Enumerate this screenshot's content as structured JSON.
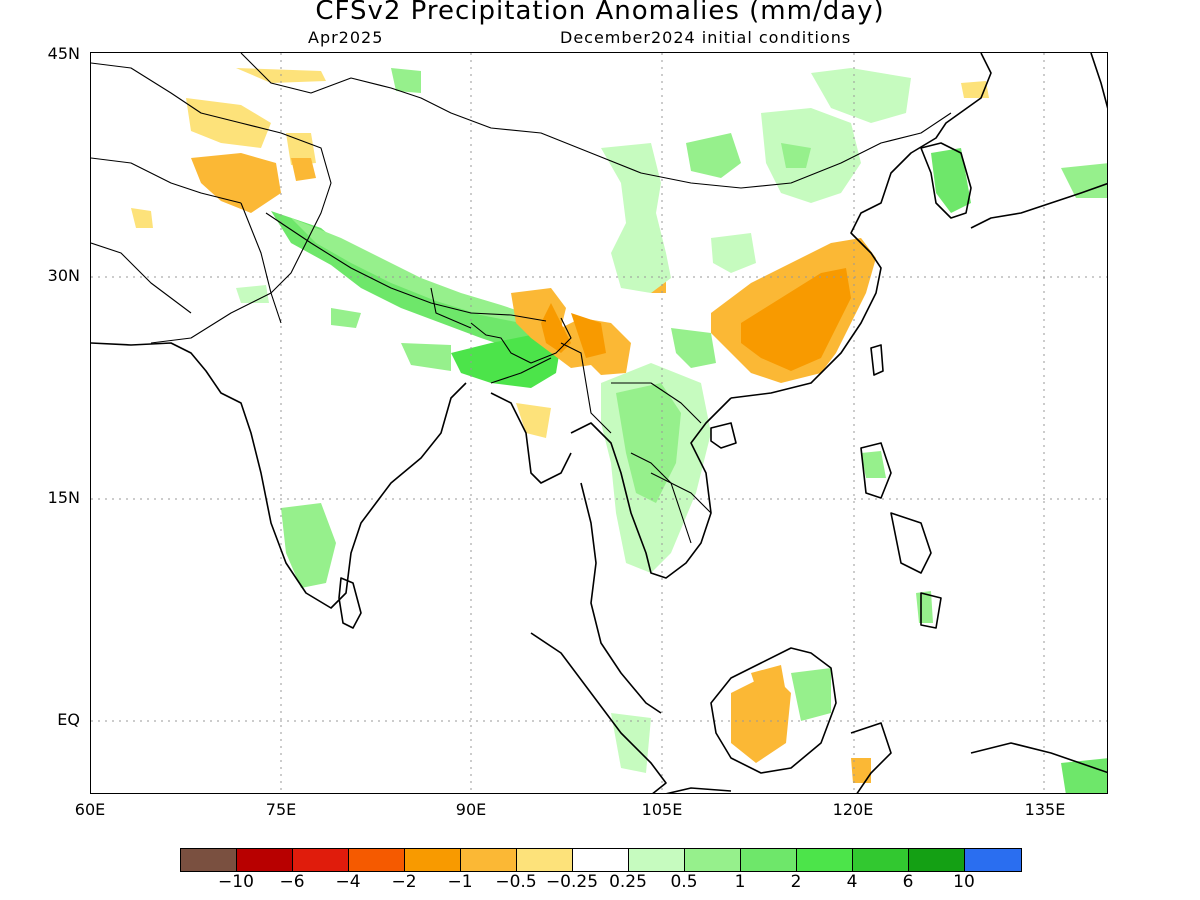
{
  "title": "CFSv2 Precipitation Anomalies (mm/day)",
  "subtitle_left": "Apr2025",
  "subtitle_right": "December2024 initial conditions",
  "lat_labels": [
    "45N",
    "30N",
    "15N",
    "EQ"
  ],
  "lon_labels": [
    "60E",
    "75E",
    "90E",
    "105E",
    "120E",
    "135E"
  ],
  "colorbar": {
    "colors": [
      "#7a5040",
      "#b80000",
      "#e01c0c",
      "#f55a00",
      "#f89a00",
      "#fbb835",
      "#fde27a",
      "#ffffff",
      "#c6fbbf",
      "#96f08c",
      "#6ee76a",
      "#4ce44a",
      "#32c830",
      "#14a014",
      "#2a6ef0"
    ],
    "labels": [
      "−10",
      "−6",
      "−4",
      "−2",
      "−1",
      "−0.5",
      "−0.25",
      "0.25",
      "0.5",
      "1",
      "2",
      "4",
      "6",
      "10"
    ]
  },
  "legend_colors": {
    "orange_dark": "#f7a21a",
    "orange_light": "#fbc44a",
    "yellow": "#fde27a",
    "green_light": "#c6fbbf",
    "green_mid": "#96f08c",
    "green": "#6ee76a",
    "green_dark": "#4ce44a"
  }
}
